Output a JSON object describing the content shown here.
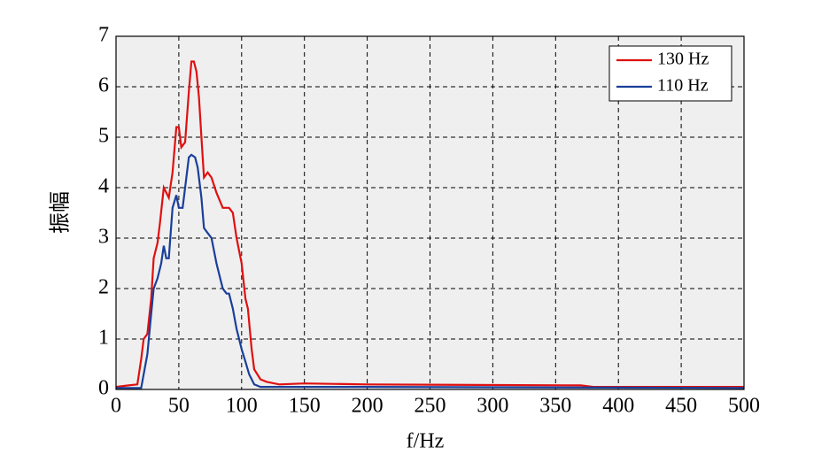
{
  "chart_data": {
    "type": "line",
    "xlabel": "f/Hz",
    "ylabel": "振幅",
    "xlim": [
      0,
      500
    ],
    "xticks": [
      0,
      50,
      100,
      150,
      200,
      250,
      300,
      350,
      400,
      450,
      500
    ],
    "ylim": [
      0,
      7
    ],
    "yticks": [
      0,
      1,
      2,
      3,
      4,
      5,
      6,
      7
    ],
    "grid": true,
    "legend": "upper right",
    "series": [
      {
        "name": "130 Hz",
        "color": "#e01010",
        "x": [
          0,
          10,
          17,
          20,
          22,
          25,
          28,
          30,
          33,
          35,
          38,
          42,
          45,
          48,
          50,
          52,
          55,
          58,
          60,
          62,
          64,
          66,
          68,
          70,
          73,
          76,
          80,
          85,
          90,
          93,
          96,
          100,
          103,
          105,
          108,
          110,
          115,
          120,
          130,
          150,
          200,
          370,
          380,
          500
        ],
        "values": [
          0.05,
          0.08,
          0.1,
          0.6,
          1.0,
          1.1,
          1.8,
          2.6,
          2.9,
          3.3,
          4.0,
          3.8,
          4.3,
          5.2,
          5.2,
          4.8,
          4.9,
          5.9,
          6.5,
          6.5,
          6.3,
          5.8,
          5.0,
          4.2,
          4.3,
          4.2,
          3.9,
          3.6,
          3.6,
          3.5,
          3.0,
          2.5,
          1.8,
          1.6,
          0.8,
          0.4,
          0.2,
          0.15,
          0.1,
          0.12,
          0.1,
          0.08,
          0.05,
          0.05
        ]
      },
      {
        "name": "110 Hz",
        "color": "#1a3f9a",
        "x": [
          0,
          20,
          22,
          25,
          28,
          30,
          33,
          36,
          38,
          40,
          42,
          45,
          48,
          50,
          53,
          56,
          58,
          60,
          63,
          65,
          68,
          70,
          73,
          76,
          80,
          85,
          88,
          90,
          93,
          96,
          100,
          103,
          106,
          110,
          115,
          200,
          500
        ],
        "values": [
          0.03,
          0.03,
          0.3,
          0.7,
          1.5,
          2.0,
          2.2,
          2.5,
          2.85,
          2.6,
          2.6,
          3.6,
          3.85,
          3.6,
          3.6,
          4.2,
          4.6,
          4.65,
          4.6,
          4.4,
          3.8,
          3.2,
          3.1,
          3.0,
          2.5,
          2.0,
          1.9,
          1.9,
          1.6,
          1.2,
          0.8,
          0.55,
          0.3,
          0.1,
          0.05,
          0.05,
          0.03
        ]
      }
    ]
  }
}
